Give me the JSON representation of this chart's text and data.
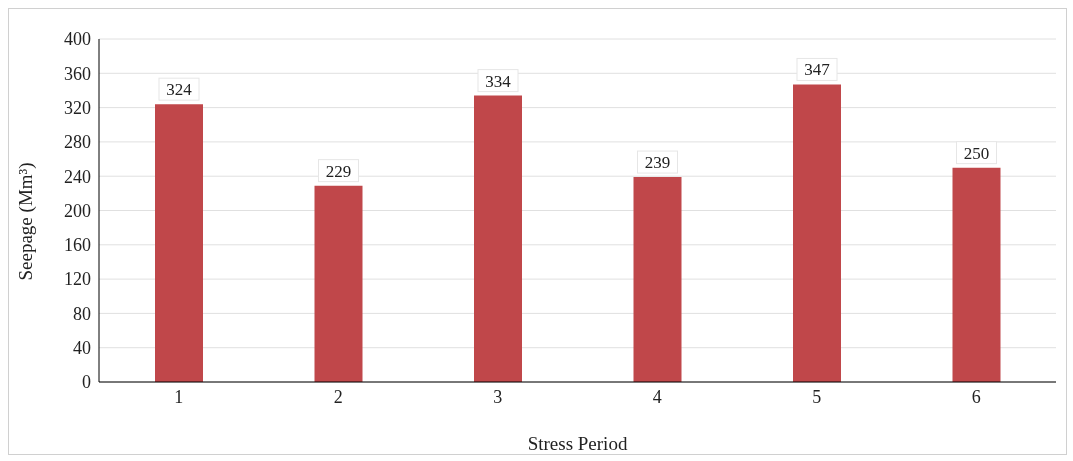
{
  "chart_data": {
    "type": "bar",
    "xlabel": "Stress Period",
    "ylabel": "Seepage (Mm³)",
    "categories": [
      "1",
      "2",
      "3",
      "4",
      "5",
      "6"
    ],
    "values": [
      324,
      229,
      334,
      239,
      347,
      250
    ],
    "color": "#c0474a",
    "ylim": [
      0,
      400
    ],
    "yticks": [
      0,
      40,
      80,
      120,
      160,
      200,
      240,
      280,
      320,
      360,
      400
    ],
    "grid": "y",
    "data_labels": true
  }
}
